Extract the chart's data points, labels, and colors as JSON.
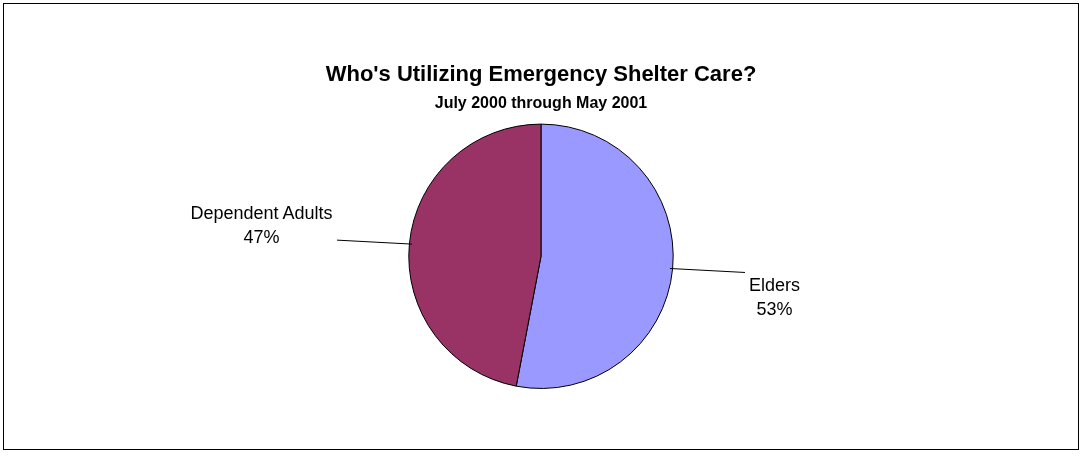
{
  "chart_data": {
    "type": "pie",
    "title": "Who's Utilizing Emergency Shelter Care?",
    "subtitle": "July 2000 through May 2001",
    "categories": [
      "Elders",
      "Dependent Adults"
    ],
    "values": [
      53,
      47
    ],
    "colors": [
      "#9999ff",
      "#993366"
    ],
    "value_labels": [
      "53%",
      "47%"
    ],
    "legend": false
  }
}
